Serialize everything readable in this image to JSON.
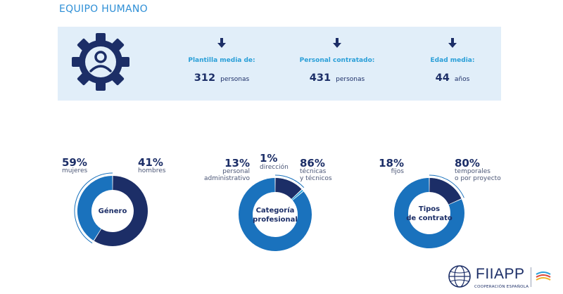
{
  "section_title": "EQUIPO HUMANO",
  "icon": "gear-user-icon",
  "stats": [
    {
      "label": "Plantilla media de:",
      "value": "312",
      "unit": "personas"
    },
    {
      "label": "Personal contratado:",
      "value": "431",
      "unit": "personas"
    },
    {
      "label": "Edad media:",
      "value": "44",
      "unit": "años"
    }
  ],
  "colors": {
    "dark": "#1c2e67",
    "blue": "#1a72bd",
    "light_bg": "#e1eef9",
    "accent": "#2a9fd8"
  },
  "chart_data": [
    {
      "type": "pie",
      "title": "Género",
      "slices": [
        {
          "pct": "59%",
          "caption": [
            "mujeres"
          ],
          "value": 59,
          "color": "#1c2e67"
        },
        {
          "pct": "41%",
          "caption": [
            "hombres"
          ],
          "value": 41,
          "color": "#1a72bd"
        }
      ]
    },
    {
      "type": "pie",
      "title": "Categoría profesional",
      "slices": [
        {
          "pct": "13%",
          "caption": [
            "personal",
            "administrativo"
          ],
          "value": 13,
          "color": "#1c2e67"
        },
        {
          "pct": "1%",
          "caption": [
            "dirección"
          ],
          "value": 1,
          "color": "#2a9fd8"
        },
        {
          "pct": "86%",
          "caption": [
            "técnicas",
            "y técnicos"
          ],
          "value": 86,
          "color": "#1a72bd"
        }
      ]
    },
    {
      "type": "pie",
      "title": "Tipos de contrato",
      "slices": [
        {
          "pct": "18%",
          "caption": [
            "fijos"
          ],
          "value": 18,
          "color": "#1c2e67"
        },
        {
          "pct": "80%",
          "caption": [
            "temporales",
            "o por proyecto"
          ],
          "value": 80,
          "color": "#1a72bd"
        }
      ]
    }
  ],
  "brand": {
    "name": "FIIAPP",
    "subtitle": "COOPERACIÓN ESPAÑOLA",
    "icon": "globe-icon"
  }
}
